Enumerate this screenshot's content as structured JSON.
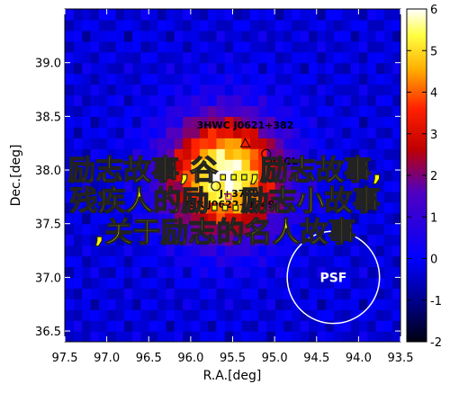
{
  "chart_data": {
    "type": "heatmap",
    "xlabel": "R.A.[deg]",
    "ylabel": "Dec.[deg]",
    "xlim": [
      97.5,
      93.5
    ],
    "ylim": [
      36.4,
      39.5
    ],
    "x_ticks": [
      "97.5",
      "97.0",
      "96.5",
      "96.0",
      "95.5",
      "95.0",
      "94.5",
      "94.0",
      "93.5"
    ],
    "y_ticks": [
      "36.5",
      "37.0",
      "37.5",
      "38.0",
      "38.5",
      "39.0"
    ],
    "colorbar": {
      "range": [
        -2,
        6
      ],
      "ticks": [
        "-2",
        "-1",
        "0",
        "1",
        "2",
        "3",
        "4",
        "5",
        "6"
      ]
    },
    "peak": {
      "ra": 95.6,
      "dec": 37.95
    },
    "annotations": [
      {
        "text": "3HWC J0621+382",
        "ra": 95.35,
        "dec": 38.25,
        "marker": "triangle"
      },
      {
        "text": "4FGL",
        "ra": 95.1,
        "dec": 38.15,
        "marker": "circle"
      },
      {
        "text": "J+3749",
        "ra": 95.7,
        "dec": 37.85,
        "marker": "circle"
      },
      {
        "text": "PSR J0622+3749",
        "ra": 95.55,
        "dec": 37.75,
        "marker": "square"
      }
    ],
    "psf_label": "PSF",
    "psf_center": {
      "ra": 94.3,
      "dec": 37.0
    },
    "psf_radius_deg": 0.55
  },
  "overlay_text": {
    "line1": "励志故事,谷...,励志故事,",
    "line2": "残疾人的励...励志小故事",
    "line3": ",关于励志的名人故事"
  },
  "colors": {
    "cmap_low": "#000010",
    "cmap_mid": "#e00000",
    "cmap_high": "#ffffff",
    "overlay": "#ffff00"
  }
}
